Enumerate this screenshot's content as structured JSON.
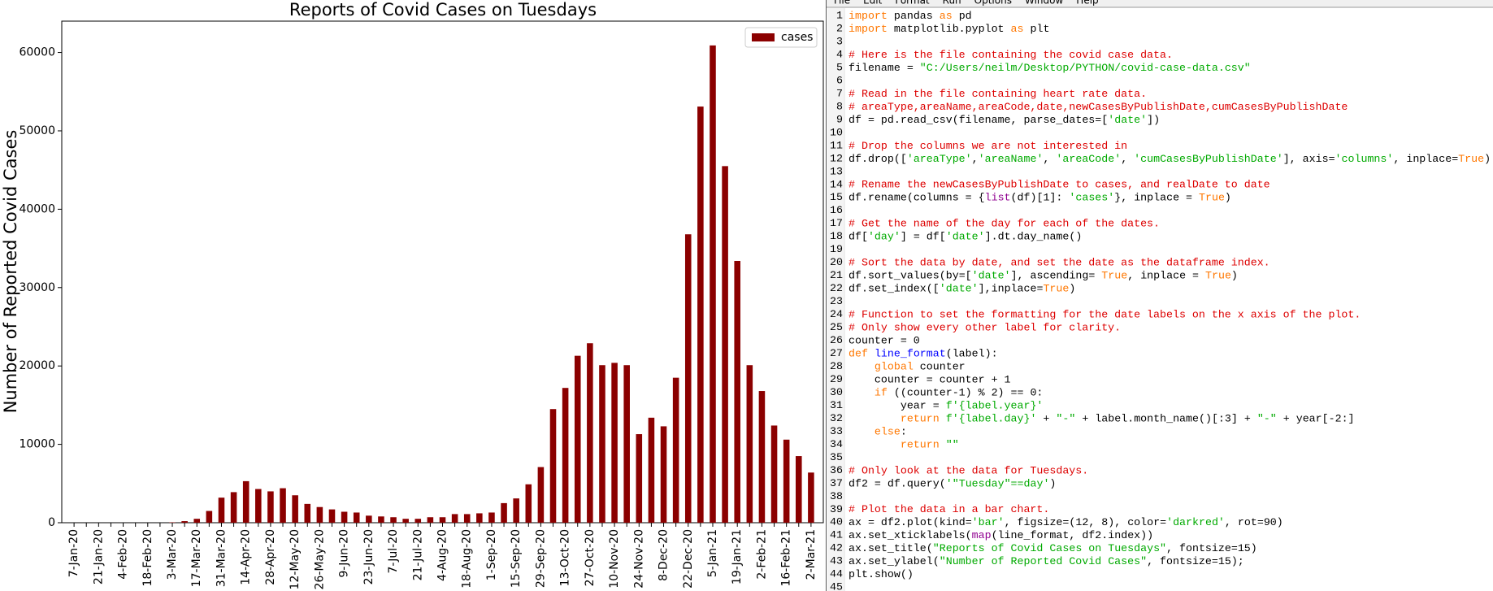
{
  "chart_data": {
    "type": "bar",
    "title": "Reports of Covid Cases on Tuesdays",
    "y_label": "Number of Reported Covid Cases",
    "categories": [
      "7-Jan-20",
      null,
      "21-Jan-20",
      null,
      "4-Feb-20",
      null,
      "18-Feb-20",
      null,
      "3-Mar-20",
      null,
      "17-Mar-20",
      null,
      "31-Mar-20",
      null,
      "14-Apr-20",
      null,
      "28-Apr-20",
      null,
      "12-May-20",
      null,
      "26-May-20",
      null,
      "9-Jun-20",
      null,
      "23-Jun-20",
      null,
      "7-Jul-20",
      null,
      "21-Jul-20",
      null,
      "4-Aug-20",
      null,
      "18-Aug-20",
      null,
      "1-Sep-20",
      null,
      "15-Sep-20",
      null,
      "29-Sep-20",
      null,
      "13-Oct-20",
      null,
      "27-Oct-20",
      null,
      "10-Nov-20",
      null,
      "24-Nov-20",
      null,
      "8-Dec-20",
      null,
      "22-Dec-20",
      null,
      "5-Jan-21",
      null,
      "19-Jan-21",
      null,
      "2-Feb-21",
      null,
      "16-Feb-21",
      null,
      "2-Mar-21"
    ],
    "series": [
      {
        "name": "cases",
        "color": "#8b0000",
        "values": [
          0,
          0,
          0,
          0,
          0,
          0,
          0,
          0,
          50,
          200,
          500,
          1500,
          3200,
          3900,
          5300,
          4300,
          4000,
          4400,
          3500,
          2400,
          2000,
          1700,
          1400,
          1300,
          900,
          800,
          700,
          500,
          500,
          700,
          700,
          1100,
          1100,
          1200,
          1300,
          2500,
          3100,
          4900,
          7100,
          14500,
          17200,
          21300,
          22900,
          20100,
          20400,
          20100,
          11300,
          13400,
          12300,
          18500,
          36800,
          53100,
          60900,
          45500,
          33400,
          20100,
          16800,
          12400,
          10600,
          8500,
          6400
        ]
      }
    ],
    "ylim": [
      0,
      64000
    ],
    "yticks": [
      0,
      10000,
      20000,
      30000,
      40000,
      50000,
      60000
    ],
    "grid": false,
    "legend": "upper right"
  },
  "editor": {
    "menu": [
      "File",
      "Edit",
      "Format",
      "Run",
      "Options",
      "Window",
      "Help"
    ],
    "line_numbers": [
      1,
      2,
      3,
      4,
      5,
      6,
      7,
      8,
      9,
      10,
      11,
      12,
      13,
      14,
      15,
      16,
      17,
      18,
      19,
      20,
      21,
      22,
      23,
      24,
      25,
      26,
      27,
      28,
      29,
      30,
      31,
      32,
      33,
      34,
      35,
      36,
      37,
      38,
      39,
      40,
      41,
      42,
      43,
      44,
      45
    ],
    "lines": [
      "import pandas as pd",
      "import matplotlib.pyplot as plt",
      "",
      "# Here is the file containing the covid case data.",
      "filename = \"C:/Users/neilm/Desktop/PYTHON/covid-case-data.csv\"",
      "",
      "# Read in the file containing heart rate data.",
      "# areaType,areaName,areaCode,date,newCasesByPublishDate,cumCasesByPublishDate",
      "df = pd.read_csv(filename, parse_dates=['date'])",
      "",
      "# Drop the columns we are not interested in",
      "df.drop(['areaType','areaName', 'areaCode', 'cumCasesByPublishDate'], axis='columns', inplace=True)",
      "",
      "# Rename the newCasesByPublishDate to cases, and realDate to date",
      "df.rename(columns = {list(df)[1]: 'cases'}, inplace = True)",
      "",
      "# Get the name of the day for each of the dates.",
      "df['day'] = df['date'].dt.day_name()",
      "",
      "# Sort the data by date, and set the date as the dataframe index.",
      "df.sort_values(by=['date'], ascending= True, inplace = True)",
      "df.set_index(['date'],inplace=True)",
      "",
      "# Function to set the formatting for the date labels on the x axis of the plot.",
      "# Only show every other label for clarity.",
      "counter = 0",
      "def line_format(label):",
      "    global counter",
      "    counter = counter + 1",
      "    if ((counter-1) % 2) == 0:",
      "        year = f'{label.year}'",
      "        return f'{label.day}' + \"-\" + label.month_name()[:3] + \"-\" + year[-2:]",
      "    else:",
      "        return \"\"",
      "",
      "# Only look at the data for Tuesdays.",
      "df2 = df.query('\"Tuesday\"==day')",
      "",
      "# Plot the data in a bar chart.",
      "ax = df2.plot(kind='bar', figsize=(12, 8), color='darkred', rot=90)",
      "ax.set_xticklabels(map(line_format, df2.index))",
      "ax.set_title(\"Reports of Covid Cases on Tuesdays\", fontsize=15)",
      "ax.set_ylabel(\"Number of Reported Covid Cases\", fontsize=15);",
      "plt.show()",
      ""
    ]
  }
}
